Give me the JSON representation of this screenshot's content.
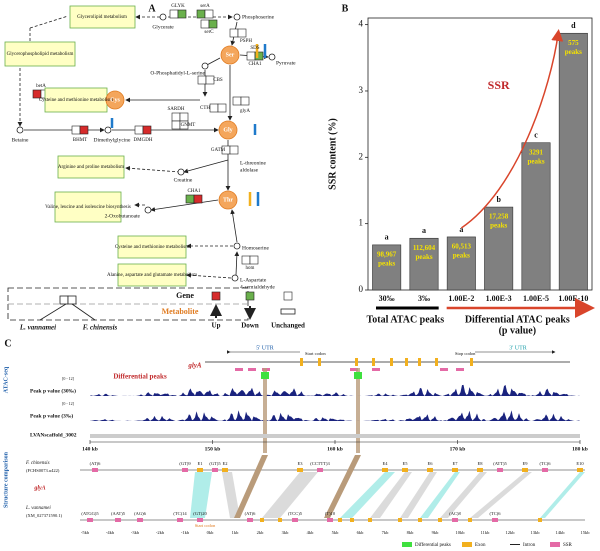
{
  "panel_a": {
    "letter": "A",
    "pathways": [
      "Glycerolipid metabolism",
      "Glycerophospholipid metabolism",
      "Cysteine and methionine metabolism",
      "Arginine and proline metabolism",
      "Valine, leucine and isoleucine biosynthesis",
      "Cysteine and methionine metabolism",
      "Alanine, aspartate and glutamate metabolism"
    ],
    "amino_acids": [
      "Ser",
      "Cys",
      "Gly",
      "Thr"
    ],
    "metabolites": [
      "Glycerate",
      "Phosphoserine",
      "Pyruvate",
      "O-Phosphatidyl-L-serine",
      "Betaine",
      "Dimethylglycine",
      "Creatine",
      "2-Oxobutanoate",
      "Homoserine",
      "L-Aspartate",
      "4-semialdehyde",
      "L-threonine",
      "aldolase"
    ],
    "genes": [
      "GLYK",
      "serA",
      "serC",
      "PSPH",
      "SDS",
      "CHA1",
      "CBS",
      "CTH",
      "glyA",
      "betA",
      "BHMT",
      "DMGDH",
      "SARDH",
      "GNMT",
      "GATM",
      "CHA1",
      "hom"
    ],
    "legend": {
      "gene": "Gene",
      "metabolite": "Metabolite",
      "up": "Up",
      "down": "Down",
      "unchanged": "Unchanged",
      "species1": "L. vannamei",
      "species2": "F. chinensis"
    }
  },
  "chart_data": {
    "type": "bar",
    "letter": "B",
    "y_label": "SSR content (%)",
    "categories": [
      "30‰",
      "3‰",
      "1.00E-2",
      "1.00E-3",
      "1.00E-5",
      "1.00E-10"
    ],
    "values": [
      0.68,
      0.78,
      0.8,
      1.25,
      2.22,
      3.87
    ],
    "color": "#808080",
    "ylim": [
      0,
      4.1
    ],
    "yticks": [
      0,
      1,
      2,
      3,
      4
    ],
    "significance": [
      "a",
      "a",
      "a",
      "b",
      "c",
      "d"
    ],
    "peak_counts": [
      "98,967",
      "112,604",
      "60,513",
      "17,258",
      "3291",
      "575"
    ],
    "peaks_word": "peaks",
    "arrow_label": "SSR",
    "group_labels": [
      "Total ATAC peaks",
      "Differential ATAC peaks",
      "(p value)"
    ]
  },
  "panel_c": {
    "letter": "C",
    "side_labels": [
      "ATAC-seq",
      "Structure comparison"
    ],
    "gene": "glyA",
    "utr": [
      "5' UTR",
      "3' UTR"
    ],
    "codons": [
      "Start codon",
      "Stop codon"
    ],
    "diff_peaks": "Differential peaks",
    "tracks": [
      {
        "range": "[0 - 12]",
        "name": "Peak p value (30‰)"
      },
      {
        "range": "[0 - 12]",
        "name": "Peak p value (3‰)"
      }
    ],
    "scaffold": "LVANscaffold_3002",
    "axis_labels": [
      "140 kb",
      "150 kb",
      "160 kb",
      "170 kb",
      "180 kb"
    ],
    "species": [
      {
        "name": "F. chinensis",
        "id": "(FCHS0073.u422)"
      },
      {
        "name": "L. vannamei",
        "id": "(XM_027371590.1)"
      }
    ],
    "top_features": [
      "(AT)6",
      "(GT)9",
      "E1",
      "(GT)5",
      "E2",
      "E3",
      "(CCTTT)3",
      "E4",
      "E5",
      "E6",
      "E7",
      "E8",
      "(ATT)5",
      "E9",
      "(TC)6",
      "E10"
    ],
    "bottom_features": [
      "(ATGG)5",
      "(AAT)5",
      "(AG)6",
      "(TC)14",
      "(GT)20",
      "(AT)6",
      "(TCC)5",
      "(T)10",
      "(AC)8",
      "(TC)6"
    ],
    "start_codon": "Start codon",
    "scale_labels": [
      "-5kb",
      "-4kb",
      "-3kb",
      "-2kb",
      "-1kb",
      "0kb",
      "1kb",
      "2kb",
      "3kb",
      "4kb",
      "5kb",
      "6kb",
      "7kb",
      "8kb",
      "9kb",
      "10kb",
      "11kb",
      "12kb",
      "13kb",
      "14kb",
      "15kb"
    ],
    "legend": [
      "Differential peaks",
      "Exon",
      "Intron",
      "SSR"
    ]
  }
}
